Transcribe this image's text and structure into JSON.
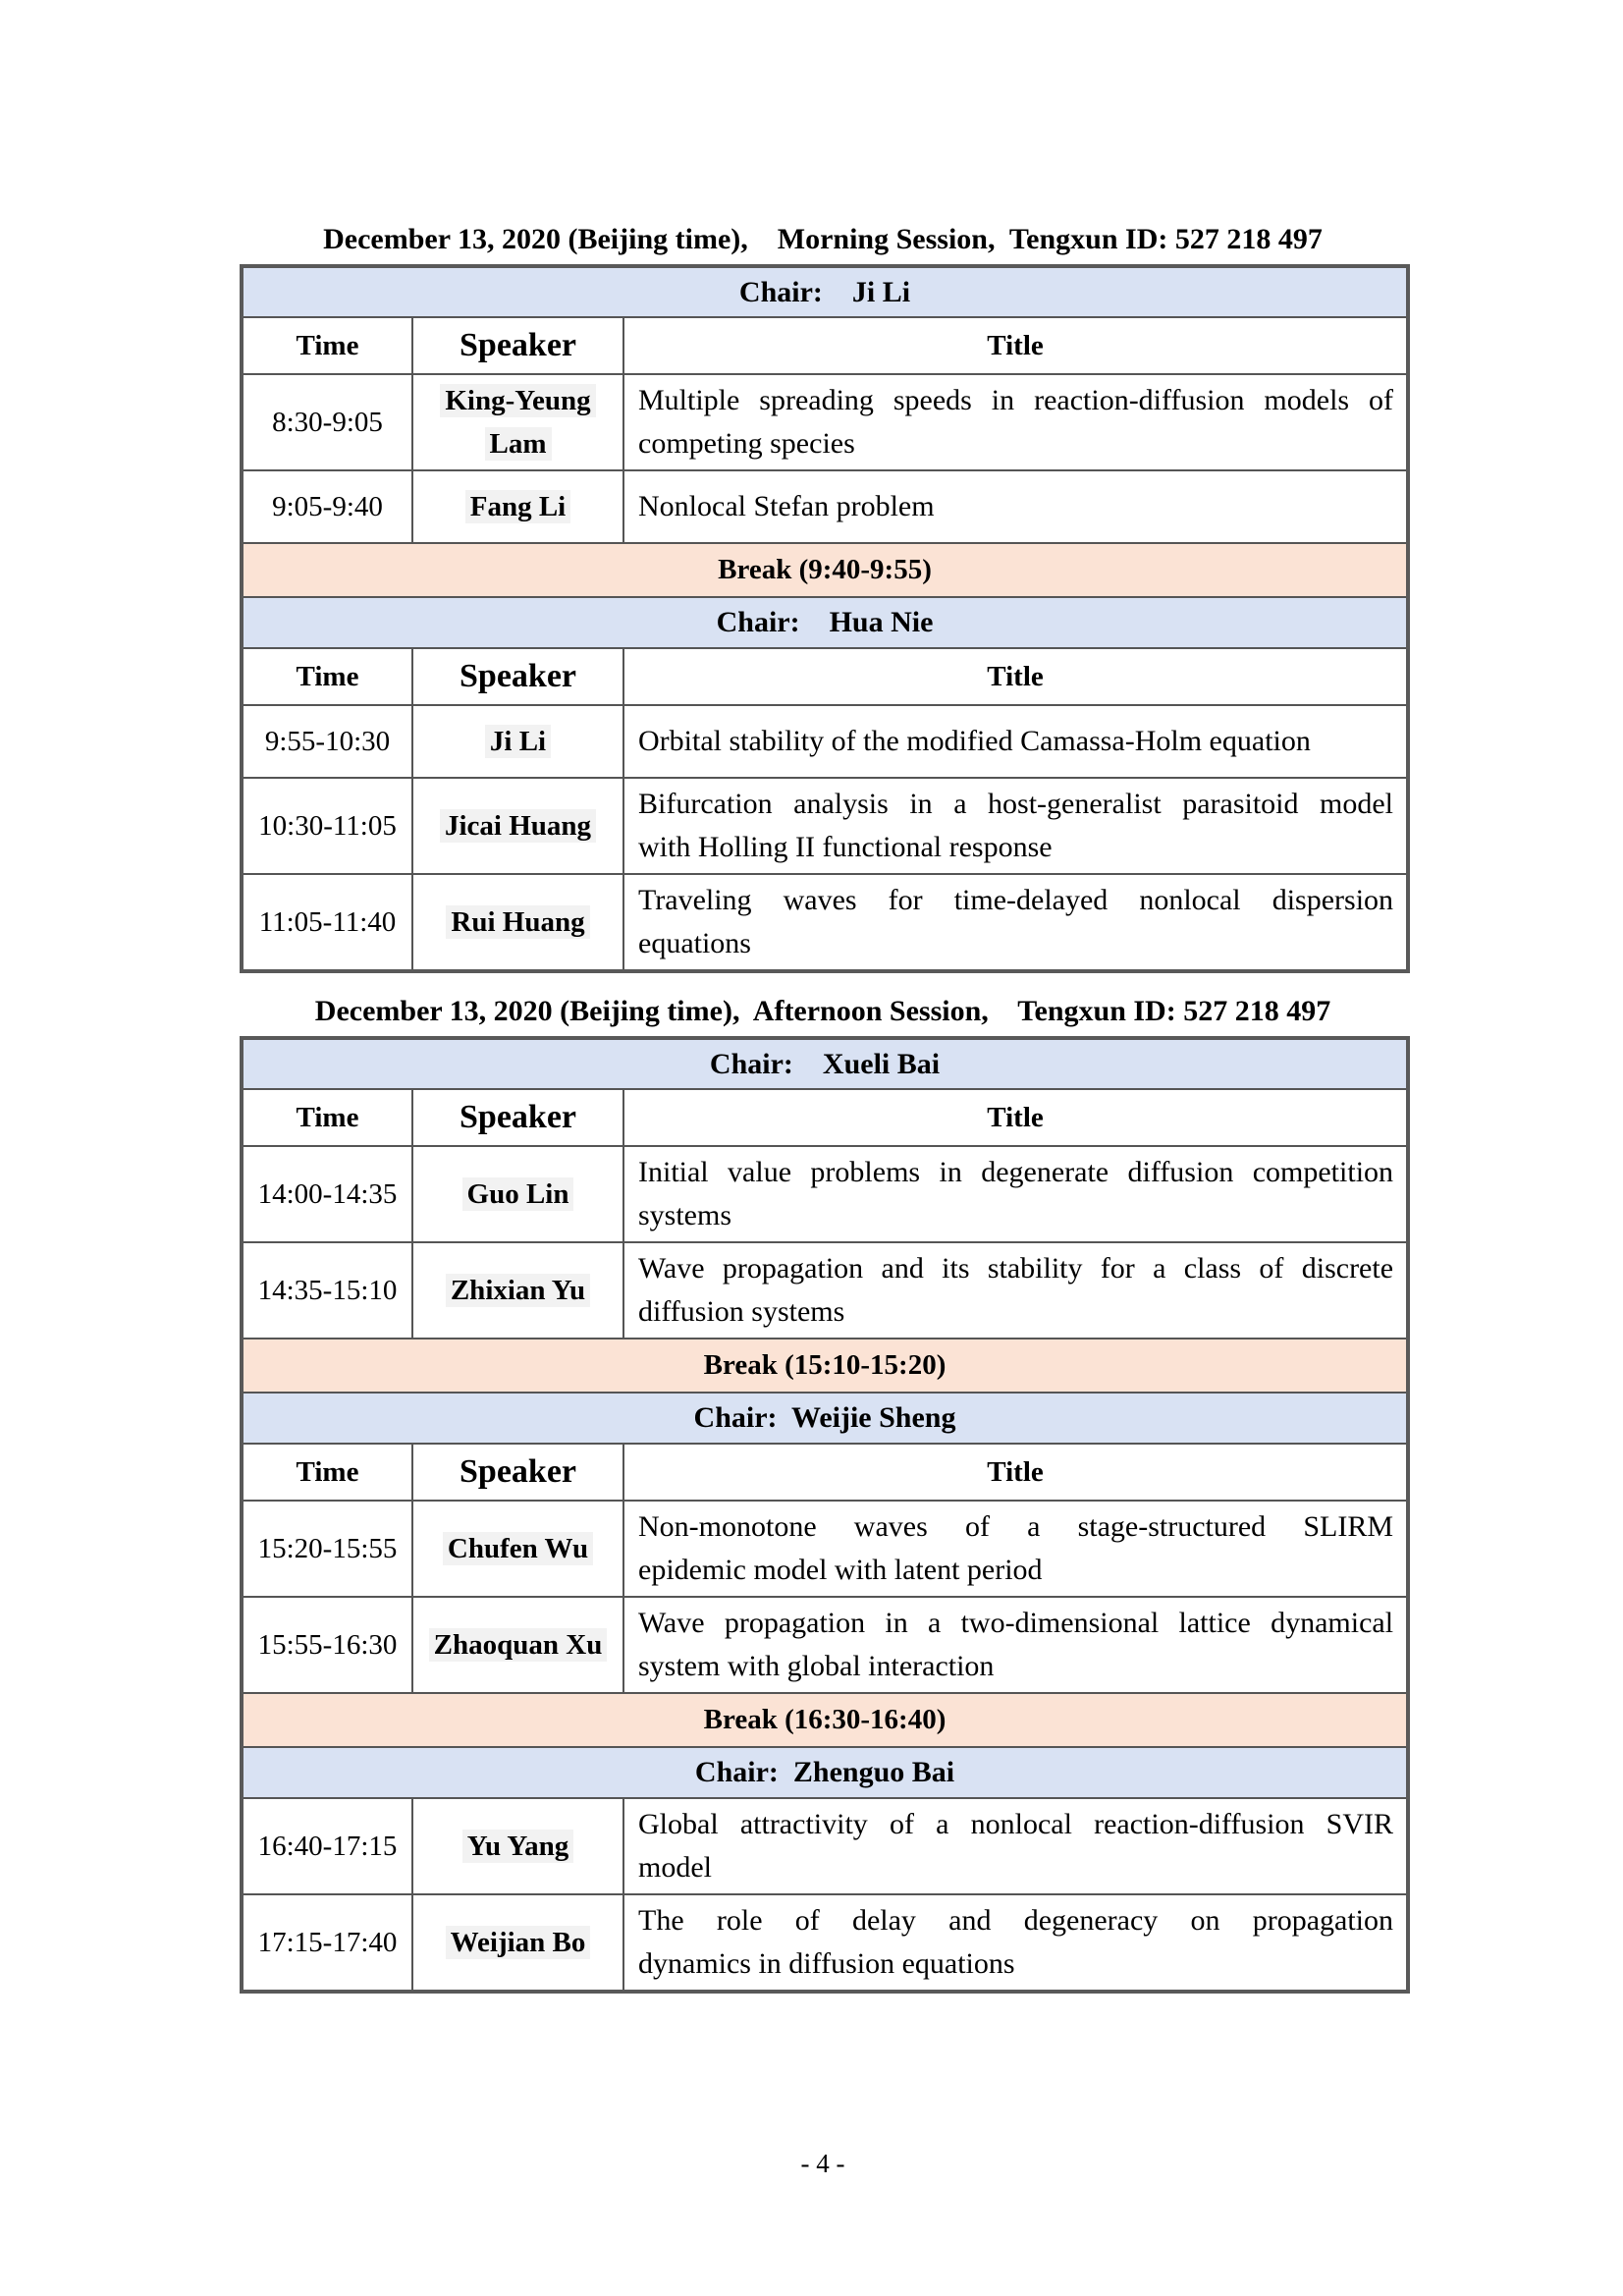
{
  "page": {
    "number_label": "- 4 -"
  },
  "colors": {
    "chair_row_bg": "#d9e2f3",
    "break_row_bg": "#fbe3d5",
    "speaker_highlight_bg": "#f2f2f2",
    "inner_border": "#555555",
    "outer_border": "#595959",
    "page_bg": "#ffffff"
  },
  "column_headers": [
    "Time",
    "Speaker",
    "Title"
  ],
  "sessions": [
    {
      "heading": "December 13, 2020 (Beijing time)，  Morning Session，Tengxun ID: 527 218 497",
      "rows": [
        {
          "type": "chair",
          "label": "Chair：  Ji Li"
        },
        {
          "type": "header"
        },
        {
          "type": "talk",
          "time": "8:30-9:05",
          "speaker": "King-Yeung Lam",
          "title": "Multiple spreading speeds in reaction-diffusion models of competing species",
          "lines": [
            "Multiple spreading speeds in reaction-diffusion models of",
            "competing species"
          ]
        },
        {
          "type": "talk",
          "time": "9:05-9:40",
          "speaker": "Fang Li",
          "title": "Nonlocal Stefan problem",
          "lines": [
            "Nonlocal Stefan problem"
          ]
        },
        {
          "type": "break",
          "label": "Break（9:40-9:55）"
        },
        {
          "type": "chair",
          "label": "Chair：  Hua Nie"
        },
        {
          "type": "header"
        },
        {
          "type": "talk",
          "time": "9:55-10:30",
          "speaker": "Ji Li",
          "title": "Orbital stability of the modified Camassa-Holm equation",
          "lines": [
            "Orbital stability of the modified Camassa-Holm equation"
          ]
        },
        {
          "type": "talk",
          "time": "10:30-11:05",
          "speaker": "Jicai Huang",
          "title": "Bifurcation analysis in a host-generalist parasitoid model with Holling II functional response",
          "lines": [
            "Bifurcation analysis in a host-generalist parasitoid model",
            "with Holling II functional response"
          ]
        },
        {
          "type": "talk",
          "time": "11:05-11:40",
          "speaker": "Rui Huang",
          "title": "Traveling waves for time-delayed nonlocal dispersion equations",
          "lines": [
            "Traveling waves for time-delayed nonlocal dispersion",
            "equations"
          ]
        }
      ]
    },
    {
      "heading": "December 13, 2020 (Beijing time)，Afternoon Session，  Tengxun ID: 527 218 497",
      "rows": [
        {
          "type": "chair",
          "label": "Chair：  Xueli Bai"
        },
        {
          "type": "header"
        },
        {
          "type": "talk",
          "time": "14:00-14:35",
          "speaker": "Guo Lin",
          "title": "Initial value problems in degenerate diffusion competition systems",
          "lines": [
            "Initial value problems in degenerate diffusion competition",
            "systems"
          ]
        },
        {
          "type": "talk",
          "time": "14:35-15:10",
          "speaker": "Zhixian Yu",
          "title": "Wave propagation and its stability for a class of discrete diffusion systems",
          "lines": [
            "Wave propagation and its stability for a class of discrete",
            "diffusion systems"
          ]
        },
        {
          "type": "break",
          "label": "Break（15:10-15:20）"
        },
        {
          "type": "chair",
          "label": "Chair：Weijie Sheng"
        },
        {
          "type": "header"
        },
        {
          "type": "talk",
          "time": "15:20-15:55",
          "speaker": "Chufen Wu",
          "title": "Non-monotone waves of a stage-structured SLIRM epidemic model with latent period",
          "lines": [
            "Non-monotone waves of a stage-structured SLIRM",
            "epidemic model with latent period"
          ]
        },
        {
          "type": "talk",
          "time": "15:55-16:30",
          "speaker": "Zhaoquan Xu",
          "title": "Wave propagation in a two-dimensional lattice dynamical system with global interaction",
          "lines": [
            "Wave propagation in a two-dimensional lattice dynamical",
            "system with global interaction"
          ]
        },
        {
          "type": "break",
          "label": "Break（16:30-16:40）"
        },
        {
          "type": "chair",
          "label": "Chair：Zhenguo Bai"
        },
        {
          "type": "talk",
          "time": "16:40-17:15",
          "speaker": "Yu Yang",
          "title": "Global attractivity of a nonlocal reaction-diffusion SVIR model",
          "lines": [
            "Global attractivity of a nonlocal reaction-diffusion SVIR",
            "model"
          ]
        },
        {
          "type": "talk",
          "time": "17:15-17:40",
          "speaker": "Weijian Bo",
          "title": "The role of delay and degeneracy on propagation dynamics in diffusion equations",
          "lines": [
            "The role of delay and degeneracy on propagation",
            "dynamics in diffusion equations"
          ]
        }
      ]
    }
  ]
}
